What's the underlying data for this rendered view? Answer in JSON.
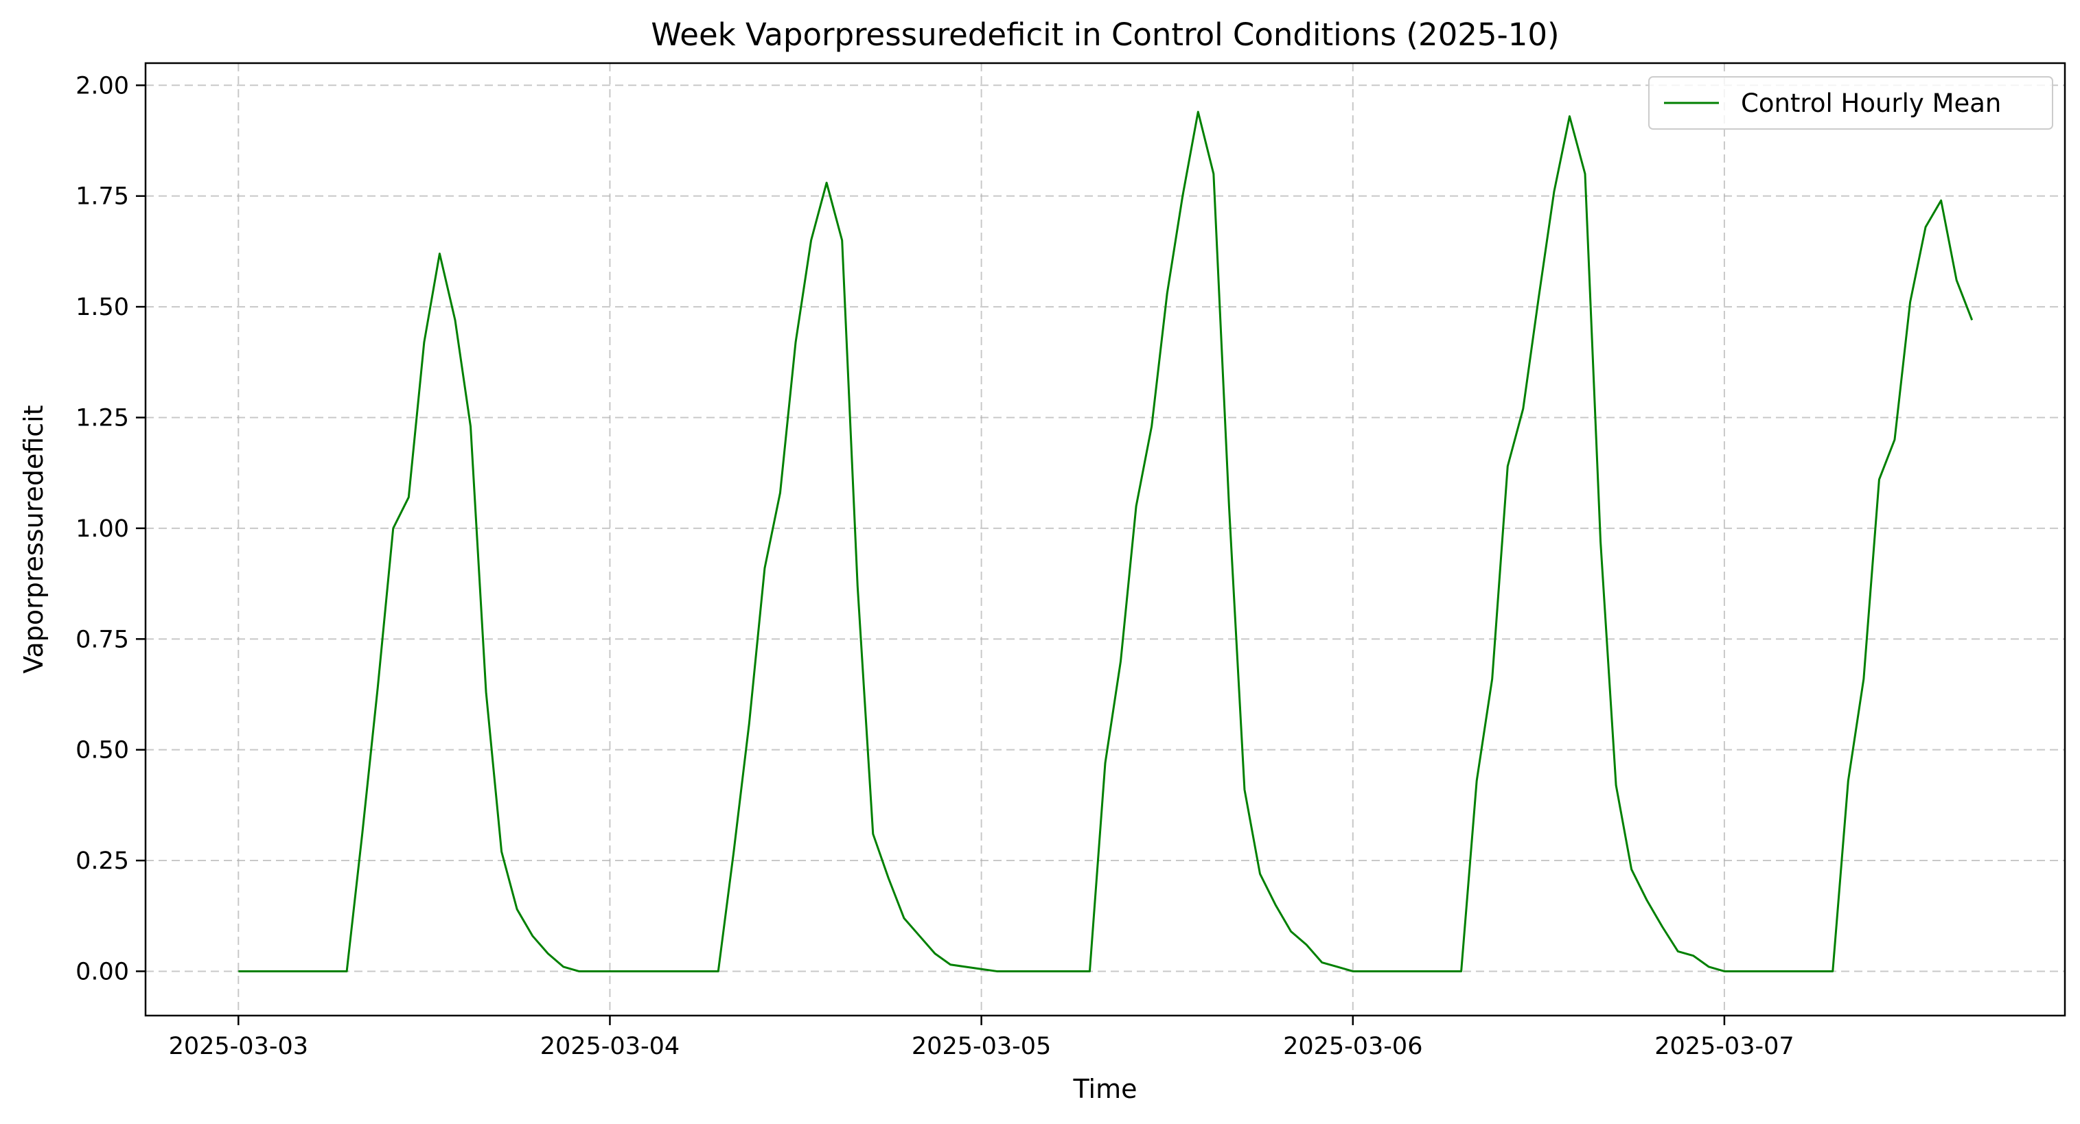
{
  "chart_data": {
    "type": "line",
    "title": "Week Vaporpressuredeficit in Control Conditions (2025-10)",
    "xlabel": "Time",
    "ylabel": "Vaporpressuredeficit",
    "x_ticks": [
      "2025-03-03",
      "2025-03-04",
      "2025-03-05",
      "2025-03-06",
      "2025-03-07"
    ],
    "y_ticks": [
      "0.00",
      "0.25",
      "0.50",
      "0.75",
      "1.00",
      "1.25",
      "1.50",
      "1.75",
      "2.00"
    ],
    "xlim": [
      "2025-03-02T18:00",
      "2025-03-07T22:00"
    ],
    "ylim": [
      -0.1,
      2.05
    ],
    "grid": true,
    "legend_position": "top-right",
    "series": [
      {
        "name": "Control Hourly Mean",
        "color": "#008000",
        "points": [
          [
            "2025-03-03T00:00",
            0.0
          ],
          [
            "2025-03-03T01:00",
            0.0
          ],
          [
            "2025-03-03T02:00",
            0.0
          ],
          [
            "2025-03-03T03:00",
            0.0
          ],
          [
            "2025-03-03T04:00",
            0.0
          ],
          [
            "2025-03-03T05:00",
            0.0
          ],
          [
            "2025-03-03T06:00",
            0.0
          ],
          [
            "2025-03-03T07:00",
            0.0
          ],
          [
            "2025-03-03T08:00",
            0.31
          ],
          [
            "2025-03-03T09:00",
            0.64
          ],
          [
            "2025-03-03T10:00",
            1.0
          ],
          [
            "2025-03-03T11:00",
            1.07
          ],
          [
            "2025-03-03T12:00",
            1.42
          ],
          [
            "2025-03-03T13:00",
            1.62
          ],
          [
            "2025-03-03T14:00",
            1.47
          ],
          [
            "2025-03-03T15:00",
            1.23
          ],
          [
            "2025-03-03T16:00",
            0.63
          ],
          [
            "2025-03-03T17:00",
            0.27
          ],
          [
            "2025-03-03T18:00",
            0.14
          ],
          [
            "2025-03-03T19:00",
            0.08
          ],
          [
            "2025-03-03T20:00",
            0.04
          ],
          [
            "2025-03-03T21:00",
            0.01
          ],
          [
            "2025-03-03T22:00",
            0.0
          ],
          [
            "2025-03-03T23:00",
            0.0
          ],
          [
            "2025-03-04T00:00",
            0.0
          ],
          [
            "2025-03-04T01:00",
            0.0
          ],
          [
            "2025-03-04T02:00",
            0.0
          ],
          [
            "2025-03-04T03:00",
            0.0
          ],
          [
            "2025-03-04T04:00",
            0.0
          ],
          [
            "2025-03-04T05:00",
            0.0
          ],
          [
            "2025-03-04T06:00",
            0.0
          ],
          [
            "2025-03-04T07:00",
            0.0
          ],
          [
            "2025-03-04T08:00",
            0.27
          ],
          [
            "2025-03-04T09:00",
            0.56
          ],
          [
            "2025-03-04T10:00",
            0.91
          ],
          [
            "2025-03-04T11:00",
            1.08
          ],
          [
            "2025-03-04T12:00",
            1.42
          ],
          [
            "2025-03-04T13:00",
            1.65
          ],
          [
            "2025-03-04T14:00",
            1.78
          ],
          [
            "2025-03-04T15:00",
            1.65
          ],
          [
            "2025-03-04T16:00",
            0.87
          ],
          [
            "2025-03-04T17:00",
            0.31
          ],
          [
            "2025-03-04T18:00",
            0.21
          ],
          [
            "2025-03-04T19:00",
            0.12
          ],
          [
            "2025-03-04T20:00",
            0.08
          ],
          [
            "2025-03-04T21:00",
            0.04
          ],
          [
            "2025-03-04T22:00",
            0.015
          ],
          [
            "2025-03-04T23:00",
            0.01
          ],
          [
            "2025-03-05T00:00",
            0.005
          ],
          [
            "2025-03-05T01:00",
            0.0
          ],
          [
            "2025-03-05T02:00",
            0.0
          ],
          [
            "2025-03-05T03:00",
            0.0
          ],
          [
            "2025-03-05T04:00",
            0.0
          ],
          [
            "2025-03-05T05:00",
            0.0
          ],
          [
            "2025-03-05T06:00",
            0.0
          ],
          [
            "2025-03-05T07:00",
            0.0
          ],
          [
            "2025-03-05T08:00",
            0.47
          ],
          [
            "2025-03-05T09:00",
            0.7
          ],
          [
            "2025-03-05T10:00",
            1.05
          ],
          [
            "2025-03-05T11:00",
            1.23
          ],
          [
            "2025-03-05T12:00",
            1.53
          ],
          [
            "2025-03-05T13:00",
            1.75
          ],
          [
            "2025-03-05T14:00",
            1.94
          ],
          [
            "2025-03-05T15:00",
            1.8
          ],
          [
            "2025-03-05T16:00",
            1.05
          ],
          [
            "2025-03-05T17:00",
            0.41
          ],
          [
            "2025-03-05T18:00",
            0.22
          ],
          [
            "2025-03-05T19:00",
            0.15
          ],
          [
            "2025-03-05T20:00",
            0.09
          ],
          [
            "2025-03-05T21:00",
            0.06
          ],
          [
            "2025-03-05T22:00",
            0.02
          ],
          [
            "2025-03-05T23:00",
            0.01
          ],
          [
            "2025-03-06T00:00",
            0.0
          ],
          [
            "2025-03-06T01:00",
            0.0
          ],
          [
            "2025-03-06T02:00",
            0.0
          ],
          [
            "2025-03-06T03:00",
            0.0
          ],
          [
            "2025-03-06T04:00",
            0.0
          ],
          [
            "2025-03-06T05:00",
            0.0
          ],
          [
            "2025-03-06T06:00",
            0.0
          ],
          [
            "2025-03-06T07:00",
            0.0
          ],
          [
            "2025-03-06T08:00",
            0.43
          ],
          [
            "2025-03-06T09:00",
            0.66
          ],
          [
            "2025-03-06T10:00",
            1.14
          ],
          [
            "2025-03-06T11:00",
            1.27
          ],
          [
            "2025-03-06T12:00",
            1.52
          ],
          [
            "2025-03-06T13:00",
            1.76
          ],
          [
            "2025-03-06T14:00",
            1.93
          ],
          [
            "2025-03-06T15:00",
            1.8
          ],
          [
            "2025-03-06T16:00",
            0.97
          ],
          [
            "2025-03-06T17:00",
            0.42
          ],
          [
            "2025-03-06T18:00",
            0.23
          ],
          [
            "2025-03-06T19:00",
            0.16
          ],
          [
            "2025-03-06T20:00",
            0.1
          ],
          [
            "2025-03-06T21:00",
            0.045
          ],
          [
            "2025-03-06T22:00",
            0.035
          ],
          [
            "2025-03-06T23:00",
            0.01
          ],
          [
            "2025-03-07T00:00",
            0.0
          ],
          [
            "2025-03-07T01:00",
            0.0
          ],
          [
            "2025-03-07T02:00",
            0.0
          ],
          [
            "2025-03-07T03:00",
            0.0
          ],
          [
            "2025-03-07T04:00",
            0.0
          ],
          [
            "2025-03-07T05:00",
            0.0
          ],
          [
            "2025-03-07T06:00",
            0.0
          ],
          [
            "2025-03-07T07:00",
            0.0
          ],
          [
            "2025-03-07T08:00",
            0.43
          ],
          [
            "2025-03-07T09:00",
            0.66
          ],
          [
            "2025-03-07T10:00",
            1.11
          ],
          [
            "2025-03-07T11:00",
            1.2
          ],
          [
            "2025-03-07T12:00",
            1.51
          ],
          [
            "2025-03-07T13:00",
            1.68
          ],
          [
            "2025-03-07T14:00",
            1.74
          ],
          [
            "2025-03-07T15:00",
            1.56
          ],
          [
            "2025-03-07T16:00",
            1.47
          ]
        ]
      }
    ]
  }
}
